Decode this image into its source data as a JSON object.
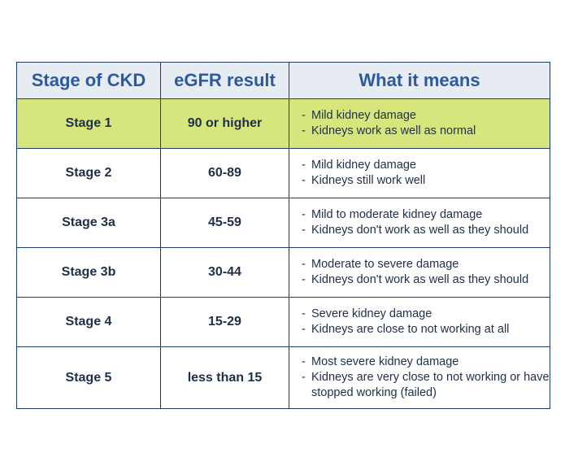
{
  "table": {
    "headers": {
      "stage": "Stage of CKD",
      "egfr": "eGFR result",
      "meaning": "What it means"
    },
    "bullet": "-",
    "rows": [
      {
        "stage": "Stage 1",
        "egfr": "90 or higher",
        "meaning": [
          "Mild kidney damage",
          "Kidneys work as well as normal"
        ]
      },
      {
        "stage": "Stage 2",
        "egfr": "60-89",
        "meaning": [
          "Mild kidney damage",
          "Kidneys still work well"
        ]
      },
      {
        "stage": "Stage 3a",
        "egfr": "45-59",
        "meaning": [
          "Mild to moderate kidney damage",
          "Kidneys don't work as well as they should"
        ]
      },
      {
        "stage": "Stage 3b",
        "egfr": "30-44",
        "meaning": [
          "Moderate to severe damage",
          "Kidneys don't work as well as they should"
        ]
      },
      {
        "stage": "Stage 4",
        "egfr": "15-29",
        "meaning": [
          "Severe kidney damage",
          "Kidneys are close to not working at all"
        ]
      },
      {
        "stage": "Stage 5",
        "egfr": "less than 15",
        "meaning": [
          "Most severe kidney damage",
          "Kidneys are very close to not working or have stopped working (failed)"
        ]
      }
    ]
  },
  "colors": {
    "header_text": "#2d59a0",
    "header_bg": "#e7ecf2",
    "highlight_bg": "#d6e67c",
    "border": "#1c3b6e",
    "body_text": "#1f2f4a"
  }
}
